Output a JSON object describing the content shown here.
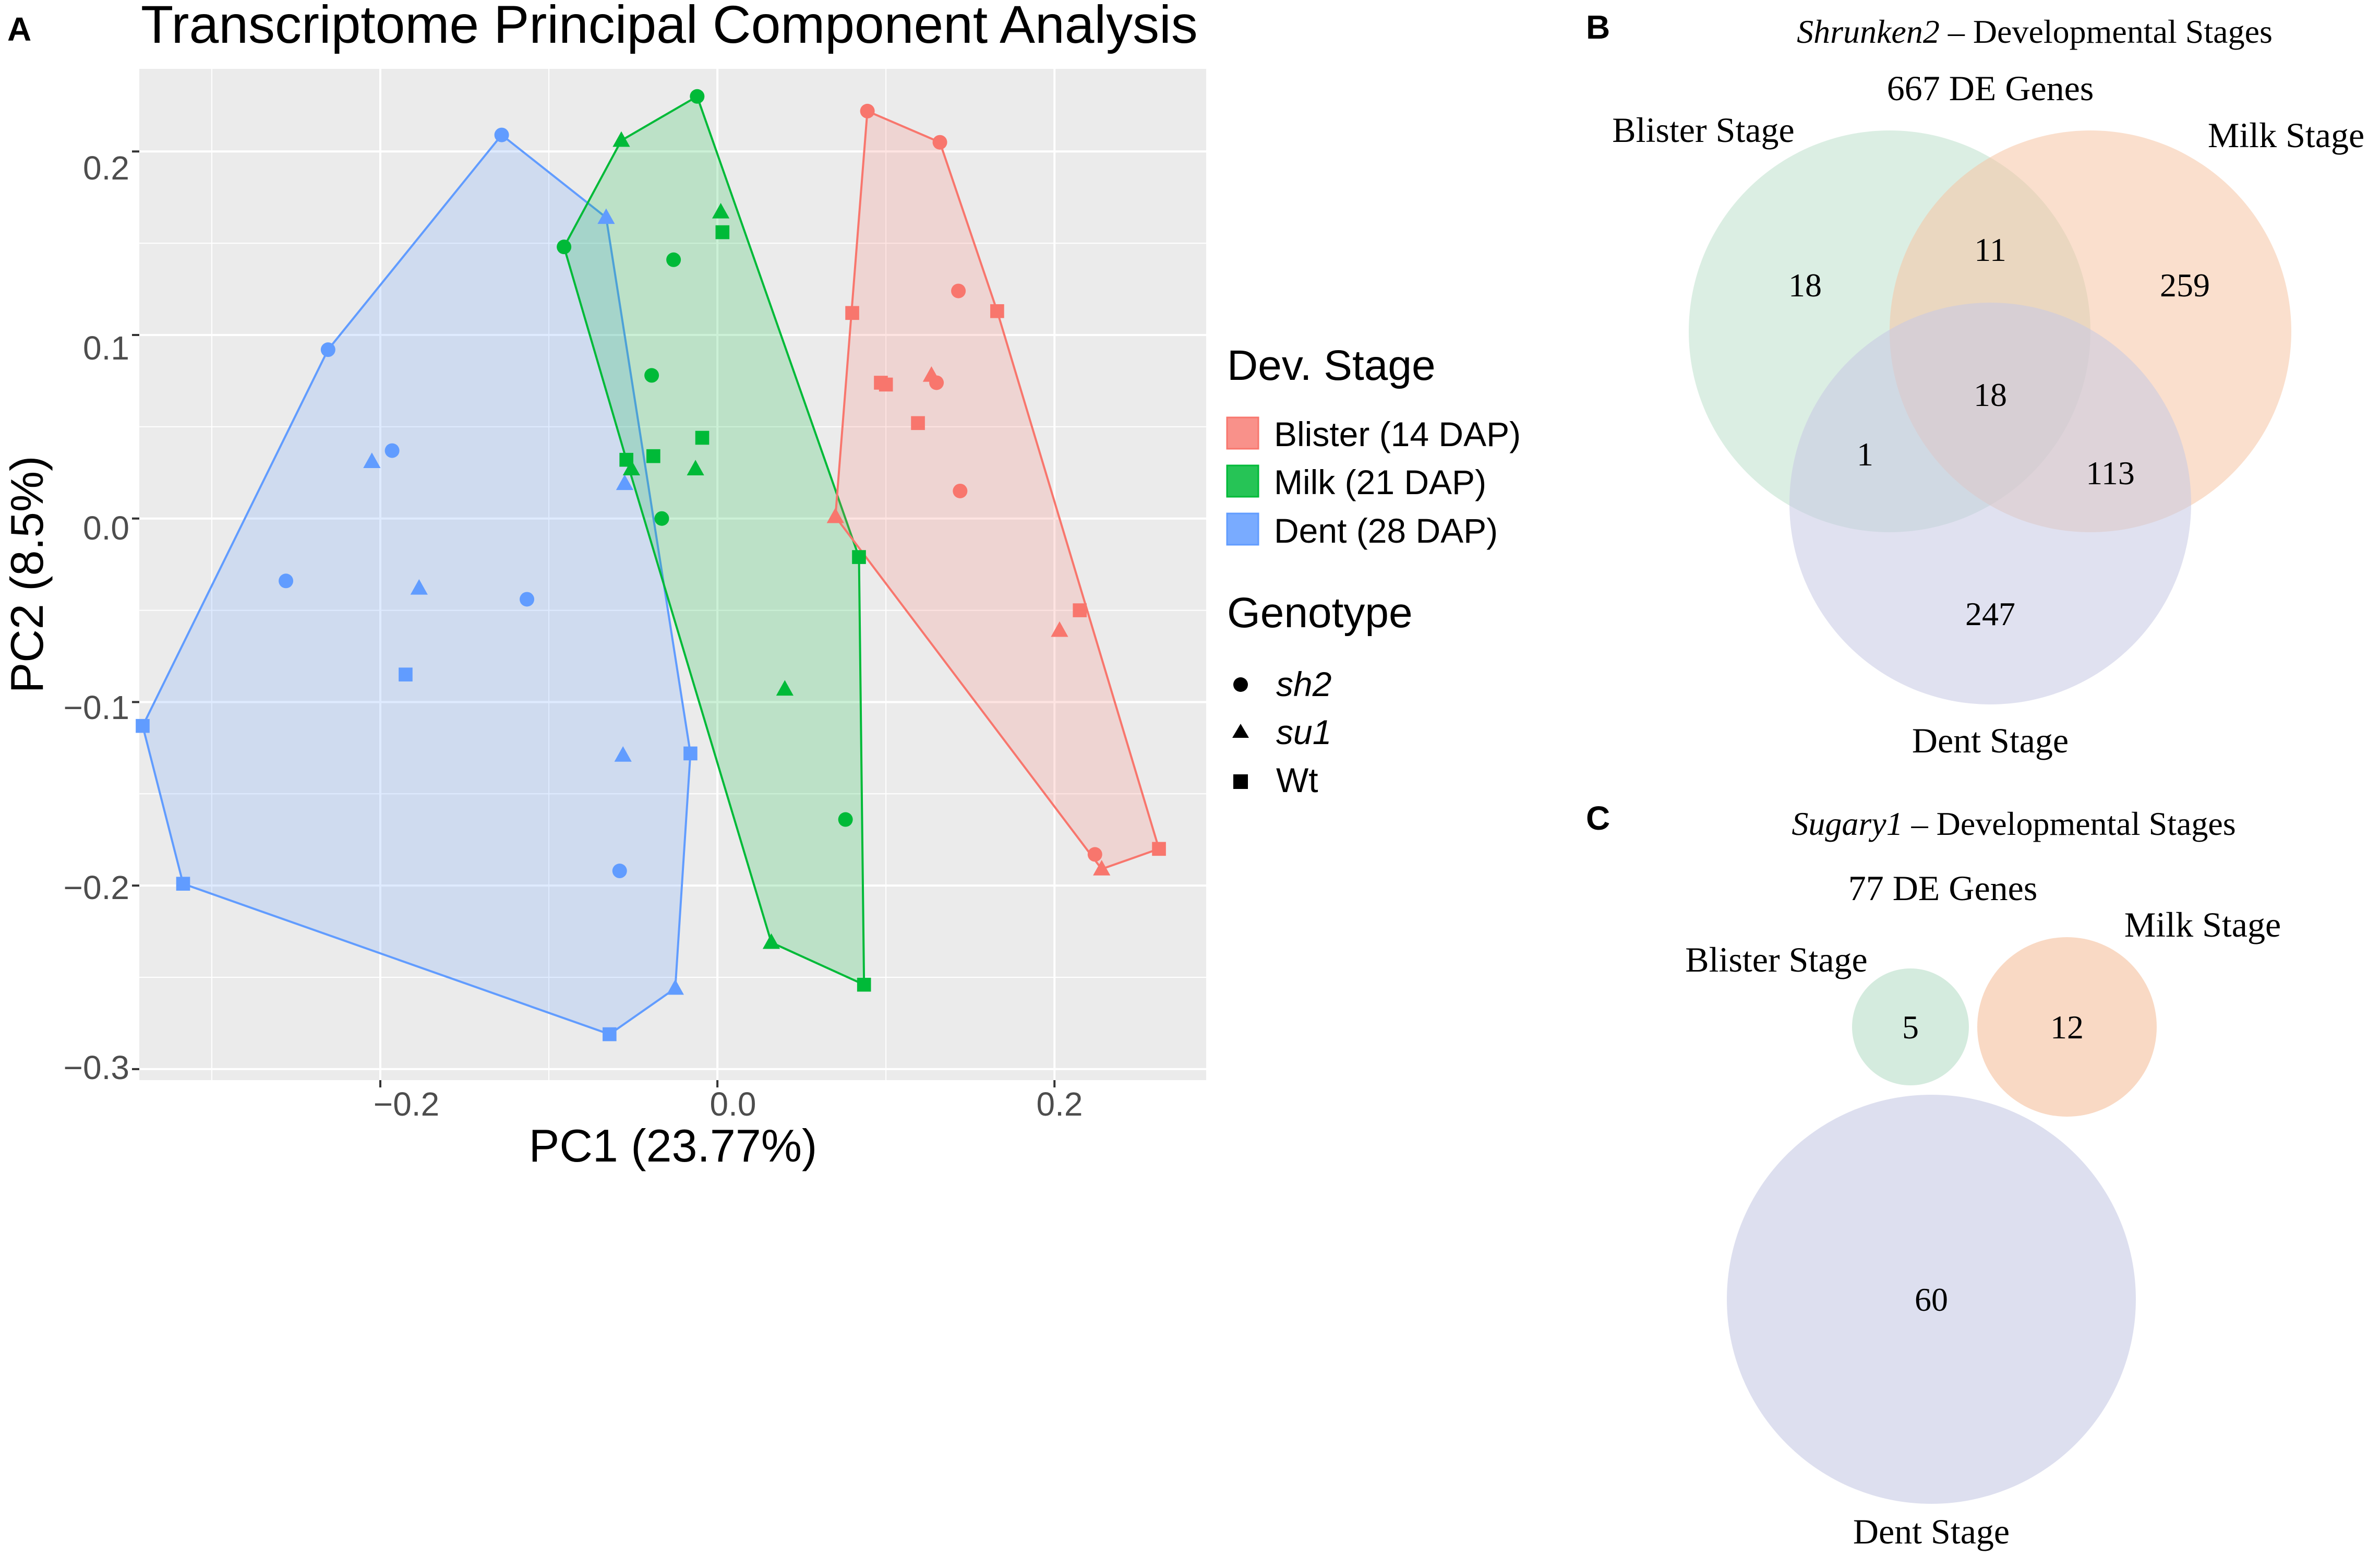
{
  "panels": {
    "a": "A",
    "b": "B",
    "c": "C"
  },
  "colors": {
    "blister": "#F8766D",
    "milk": "#00BA38",
    "dent": "#619CFF",
    "venn_blister": "#B8DDC8",
    "venn_milk": "#F6C4A4",
    "venn_dent": "#C6C9E4",
    "panel_bg": "#EBEBEB"
  },
  "chart_data": [
    {
      "type": "scatter",
      "title": "Transcriptome Principal Component Analysis",
      "xlabel": "PC1 (23.77%)",
      "ylabel": "PC2 (8.5%)",
      "xlim": [
        -0.343,
        0.29
      ],
      "ylim": [
        -0.306,
        0.245
      ],
      "x_ticks": [
        -0.2,
        0.0,
        0.2
      ],
      "x_tick_labels": [
        "−0.2",
        "0.0",
        "0.2"
      ],
      "y_ticks": [
        0.2,
        0.1,
        0.0,
        -0.1,
        -0.2,
        -0.3
      ],
      "y_tick_labels": [
        "0.2",
        "0.1",
        "0.0",
        "−0.1",
        "−0.2",
        "−0.3"
      ],
      "grid": true,
      "hulls": true,
      "legend": {
        "stage_title": "Dev. Stage",
        "stages": [
          "Blister (14 DAP)",
          "Milk (21 DAP)",
          "Dent (28 DAP)"
        ],
        "genotype_title": "Genotype",
        "genotypes": [
          "sh2",
          "su1",
          "Wt"
        ],
        "placement": "right"
      },
      "series": [
        {
          "name": "Blister (14 DAP)",
          "points": [
            {
              "x": 0.089,
              "y": 0.222,
              "g": "sh2"
            },
            {
              "x": 0.132,
              "y": 0.205,
              "g": "sh2"
            },
            {
              "x": 0.143,
              "y": 0.124,
              "g": "sh2"
            },
            {
              "x": 0.13,
              "y": 0.074,
              "g": "sh2"
            },
            {
              "x": 0.144,
              "y": 0.015,
              "g": "sh2"
            },
            {
              "x": 0.224,
              "y": -0.183,
              "g": "sh2"
            },
            {
              "x": 0.127,
              "y": 0.078,
              "g": "su1"
            },
            {
              "x": 0.07,
              "y": 0.001,
              "g": "su1"
            },
            {
              "x": 0.203,
              "y": -0.061,
              "g": "su1"
            },
            {
              "x": 0.228,
              "y": -0.191,
              "g": "su1"
            },
            {
              "x": 0.08,
              "y": 0.112,
              "g": "Wt"
            },
            {
              "x": 0.166,
              "y": 0.113,
              "g": "Wt"
            },
            {
              "x": 0.097,
              "y": 0.074,
              "g": "Wt"
            },
            {
              "x": 0.1,
              "y": 0.073,
              "g": "Wt"
            },
            {
              "x": 0.119,
              "y": 0.052,
              "g": "Wt"
            },
            {
              "x": 0.215,
              "y": -0.05,
              "g": "Wt"
            },
            {
              "x": 0.262,
              "y": -0.18,
              "g": "Wt"
            }
          ]
        },
        {
          "name": "Milk (21 DAP)",
          "points": [
            {
              "x": -0.012,
              "y": 0.23,
              "g": "sh2"
            },
            {
              "x": -0.091,
              "y": 0.148,
              "g": "sh2"
            },
            {
              "x": -0.026,
              "y": 0.141,
              "g": "sh2"
            },
            {
              "x": -0.039,
              "y": 0.078,
              "g": "sh2"
            },
            {
              "x": -0.033,
              "y": 0.0,
              "g": "sh2"
            },
            {
              "x": 0.076,
              "y": -0.164,
              "g": "sh2"
            },
            {
              "x": -0.057,
              "y": 0.206,
              "g": "su1"
            },
            {
              "x": 0.002,
              "y": 0.167,
              "g": "su1"
            },
            {
              "x": -0.051,
              "y": 0.027,
              "g": "su1"
            },
            {
              "x": -0.013,
              "y": 0.027,
              "g": "su1"
            },
            {
              "x": 0.04,
              "y": -0.093,
              "g": "su1"
            },
            {
              "x": 0.032,
              "y": -0.231,
              "g": "su1"
            },
            {
              "x": 0.003,
              "y": 0.156,
              "g": "Wt"
            },
            {
              "x": -0.054,
              "y": 0.032,
              "g": "Wt"
            },
            {
              "x": -0.038,
              "y": 0.034,
              "g": "Wt"
            },
            {
              "x": -0.009,
              "y": 0.044,
              "g": "Wt"
            },
            {
              "x": 0.084,
              "y": -0.021,
              "g": "Wt"
            },
            {
              "x": 0.087,
              "y": -0.254,
              "g": "Wt"
            }
          ]
        },
        {
          "name": "Dent (28 DAP)",
          "points": [
            {
              "x": -0.128,
              "y": 0.209,
              "g": "sh2"
            },
            {
              "x": -0.231,
              "y": 0.092,
              "g": "sh2"
            },
            {
              "x": -0.193,
              "y": 0.037,
              "g": "sh2"
            },
            {
              "x": -0.256,
              "y": -0.034,
              "g": "sh2"
            },
            {
              "x": -0.113,
              "y": -0.044,
              "g": "sh2"
            },
            {
              "x": -0.058,
              "y": -0.192,
              "g": "sh2"
            },
            {
              "x": -0.066,
              "y": 0.164,
              "g": "su1"
            },
            {
              "x": -0.205,
              "y": 0.031,
              "g": "su1"
            },
            {
              "x": -0.055,
              "y": 0.019,
              "g": "su1"
            },
            {
              "x": -0.177,
              "y": -0.038,
              "g": "su1"
            },
            {
              "x": -0.056,
              "y": -0.129,
              "g": "su1"
            },
            {
              "x": -0.025,
              "y": -0.256,
              "g": "su1"
            },
            {
              "x": -0.185,
              "y": -0.085,
              "g": "Wt"
            },
            {
              "x": -0.341,
              "y": -0.113,
              "g": "Wt"
            },
            {
              "x": -0.016,
              "y": -0.128,
              "g": "Wt"
            },
            {
              "x": -0.317,
              "y": -0.199,
              "g": "Wt"
            },
            {
              "x": -0.064,
              "y": -0.281,
              "g": "Wt"
            }
          ]
        }
      ]
    },
    {
      "type": "venn",
      "title_italic": "Shrunken2",
      "title_rest": " – Developmental Stages",
      "subtitle": "667 DE Genes",
      "sets": [
        "Blister Stage",
        "Milk Stage",
        "Dent Stage"
      ],
      "regions": {
        "blister_only": 18,
        "milk_only": 259,
        "dent_only": 247,
        "blister_milk": 11,
        "blister_dent": 1,
        "milk_dent": 113,
        "all_three": 18
      }
    },
    {
      "type": "venn",
      "title_italic": "Sugary1",
      "title_rest": " – Developmental Stages",
      "subtitle": "77 DE Genes",
      "sets": [
        "Blister Stage",
        "Milk Stage",
        "Dent Stage"
      ],
      "regions": {
        "blister_only": 5,
        "milk_only": 12,
        "dent_only": 60
      }
    }
  ]
}
